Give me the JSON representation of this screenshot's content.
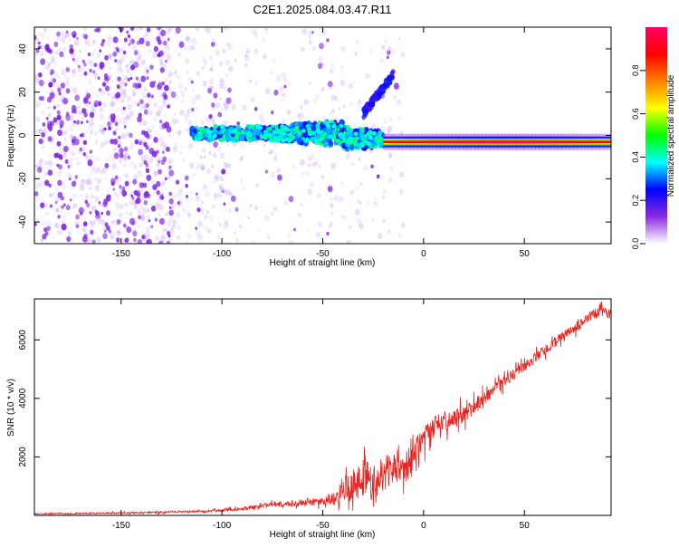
{
  "figure_title": "C2E1.2025.084.03.47.R11",
  "chart_data": [
    {
      "type": "heatmap",
      "title": "",
      "xlabel": "Height of straight line (km)",
      "ylabel": "Frequency (Hz)",
      "xlim": [
        -193,
        93
      ],
      "ylim": [
        -50,
        50
      ],
      "x_ticks": [
        -150,
        -100,
        -50,
        0,
        50
      ],
      "y_ticks": [
        -40,
        -20,
        0,
        20,
        40
      ],
      "grid": false,
      "colorbar": {
        "label": "Normalized spectral amplitude",
        "range": [
          0,
          1
        ],
        "ticks": [
          0.0,
          0.2,
          0.4,
          0.6,
          0.8
        ],
        "colormap": [
          "#ffffff",
          "#8a2be2",
          "#0000ff",
          "#00ffff",
          "#00ff00",
          "#ffff00",
          "#ff8000",
          "#ff0000",
          "#ff0066"
        ]
      },
      "features": {
        "carrier_line": {
          "frequency": -3,
          "x_start": -20,
          "x_end": 93,
          "peak_amplitude": 1.0
        },
        "turbulent_band": {
          "frequency_center": 0,
          "x_start": -115,
          "x_end": -20
        },
        "rising_branch": {
          "x_start": -30,
          "x_end": -15,
          "frequency_start": 10,
          "frequency_end": 28
        },
        "noise_region": {
          "x_start": -193,
          "x_end": -50
        }
      }
    },
    {
      "type": "line",
      "title": "",
      "xlabel": "Height of straight line (km)",
      "ylabel": "SNR (10 * v/v)",
      "xlim": [
        -193,
        93
      ],
      "ylim": [
        0,
        7400
      ],
      "x_ticks": [
        -150,
        -100,
        -50,
        0,
        50
      ],
      "y_ticks": [
        2000,
        4000,
        6000
      ],
      "grid": false,
      "series": [
        {
          "color": "#e8231f",
          "x": [
            -193,
            -150,
            -120,
            -100,
            -90,
            -80,
            -70,
            -60,
            -50,
            -45,
            -40,
            -35,
            -30,
            -25,
            -20,
            -15,
            -10,
            -5,
            0,
            5,
            10,
            15,
            20,
            25,
            30,
            40,
            50,
            60,
            70,
            80,
            85,
            90,
            93
          ],
          "values": [
            50,
            80,
            120,
            170,
            230,
            330,
            380,
            420,
            480,
            560,
            800,
            1100,
            1300,
            1200,
            1400,
            1600,
            1500,
            2100,
            2600,
            3000,
            3200,
            3300,
            3450,
            3700,
            4000,
            4550,
            5100,
            5650,
            6150,
            6650,
            6900,
            7000,
            6800
          ],
          "noise_amplitude": [
            30,
            40,
            50,
            60,
            90,
            120,
            120,
            140,
            200,
            350,
            600,
            800,
            1000,
            900,
            900,
            800,
            800,
            700,
            600,
            550,
            500,
            480,
            450,
            400,
            350,
            300,
            280,
            260,
            250,
            250,
            250,
            250,
            250
          ]
        }
      ]
    }
  ]
}
